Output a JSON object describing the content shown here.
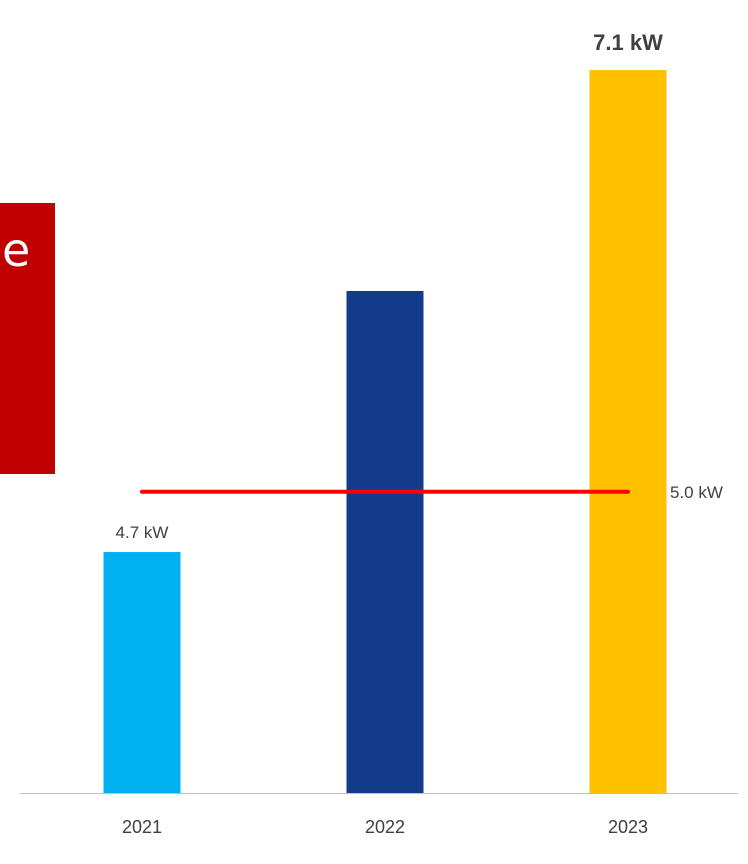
{
  "chart_data": {
    "type": "bar",
    "title": "",
    "xlabel": "",
    "ylabel": "",
    "categories": [
      "2021",
      "2022",
      "2023"
    ],
    "values": [
      4.7,
      6.0,
      7.1
    ],
    "value_labels": [
      "4.7 kW",
      "",
      "7.1 kW"
    ],
    "bar_colors": [
      "#00b0f0",
      "#143c8c",
      "#ffc000"
    ],
    "emphasized_label": "7.1 kW",
    "ylim": [
      3.5,
      7.2
    ],
    "grid": false,
    "legend": "none",
    "reference_line": {
      "value": 5.0,
      "label": "5.0 kW",
      "color": "#ff0000"
    },
    "axis_line_color": "#bfbfbf",
    "label_color": "#404040"
  },
  "callout": {
    "text": "e",
    "color": "#c00000"
  }
}
